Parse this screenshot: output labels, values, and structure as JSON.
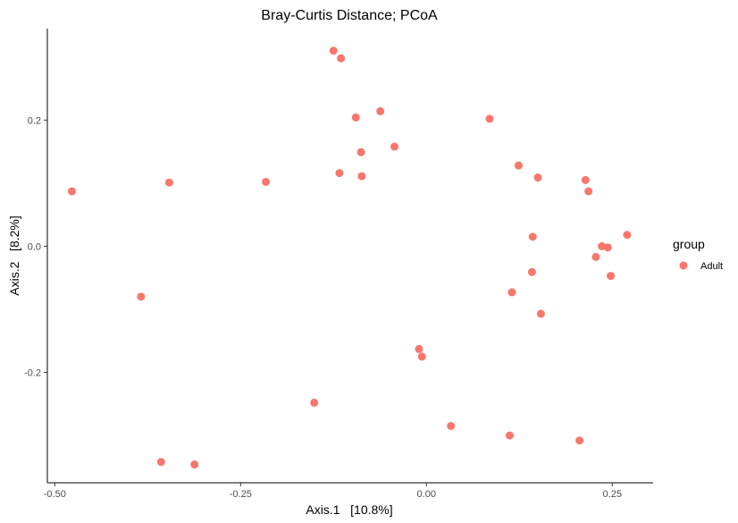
{
  "chart_data": {
    "type": "scatter",
    "title": "Bray-Curtis Distance; PCoA",
    "xlabel": "Axis.1   [10.8%]",
    "ylabel": "Axis.2   [8.2%]",
    "xlim": [
      -0.51,
      0.305
    ],
    "ylim": [
      -0.375,
      0.345
    ],
    "x_ticks": [
      -0.5,
      -0.25,
      0.0,
      0.25
    ],
    "x_tick_labels": [
      "-0.50",
      "-0.25",
      "0.00",
      "0.25"
    ],
    "y_ticks": [
      -0.2,
      0.0,
      0.2
    ],
    "y_tick_labels": [
      "-0.2",
      "0.0",
      "0.2"
    ],
    "grid": false,
    "legend": {
      "title": "group",
      "position": "right",
      "entries": [
        {
          "label": "Adult",
          "color": "#F8766D"
        }
      ]
    },
    "series": [
      {
        "name": "Adult",
        "color": "#F8766D",
        "points": [
          {
            "x": -0.125,
            "y": 0.31
          },
          {
            "x": -0.115,
            "y": 0.298
          },
          {
            "x": -0.062,
            "y": 0.214
          },
          {
            "x": -0.095,
            "y": 0.204
          },
          {
            "x": 0.085,
            "y": 0.202
          },
          {
            "x": -0.043,
            "y": 0.158
          },
          {
            "x": -0.088,
            "y": 0.149
          },
          {
            "x": 0.124,
            "y": 0.128
          },
          {
            "x": -0.117,
            "y": 0.116
          },
          {
            "x": -0.087,
            "y": 0.111
          },
          {
            "x": 0.15,
            "y": 0.109
          },
          {
            "x": 0.214,
            "y": 0.105
          },
          {
            "x": -0.346,
            "y": 0.101
          },
          {
            "x": -0.216,
            "y": 0.102
          },
          {
            "x": -0.477,
            "y": 0.087
          },
          {
            "x": 0.218,
            "y": 0.087
          },
          {
            "x": 0.27,
            "y": 0.018
          },
          {
            "x": 0.143,
            "y": 0.015
          },
          {
            "x": 0.236,
            "y": 0.0
          },
          {
            "x": 0.244,
            "y": -0.002
          },
          {
            "x": 0.228,
            "y": -0.017
          },
          {
            "x": 0.142,
            "y": -0.041
          },
          {
            "x": 0.248,
            "y": -0.047
          },
          {
            "x": 0.115,
            "y": -0.073
          },
          {
            "x": -0.384,
            "y": -0.08
          },
          {
            "x": 0.154,
            "y": -0.107
          },
          {
            "x": -0.01,
            "y": -0.163
          },
          {
            "x": -0.006,
            "y": -0.175
          },
          {
            "x": -0.151,
            "y": -0.248
          },
          {
            "x": 0.033,
            "y": -0.285
          },
          {
            "x": 0.112,
            "y": -0.3
          },
          {
            "x": 0.206,
            "y": -0.308
          },
          {
            "x": -0.357,
            "y": -0.342
          },
          {
            "x": -0.312,
            "y": -0.346
          }
        ]
      }
    ]
  }
}
